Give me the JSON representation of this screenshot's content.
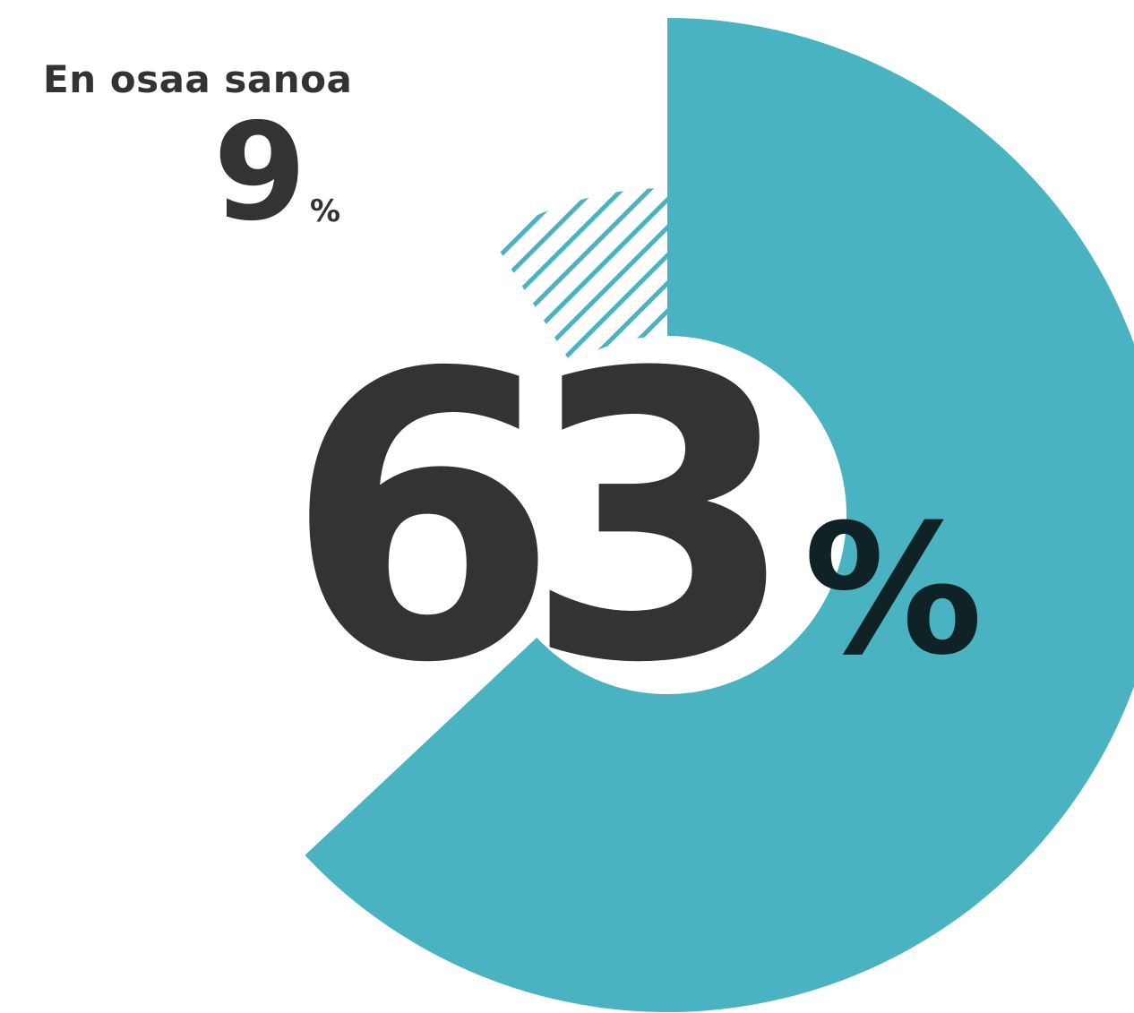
{
  "chart_data": {
    "type": "pie",
    "slices": [
      {
        "label": "",
        "value": 63,
        "color": "#49b3c2",
        "style": "solid"
      },
      {
        "label": "En osaa sanoa",
        "value": 9,
        "color": "#49b3c2",
        "style": "hatched"
      }
    ],
    "unit": "%"
  },
  "labels": {
    "main_value": "63",
    "main_unit": "%",
    "other_label": "En osaa sanoa",
    "other_value": "9",
    "other_unit": "%"
  }
}
